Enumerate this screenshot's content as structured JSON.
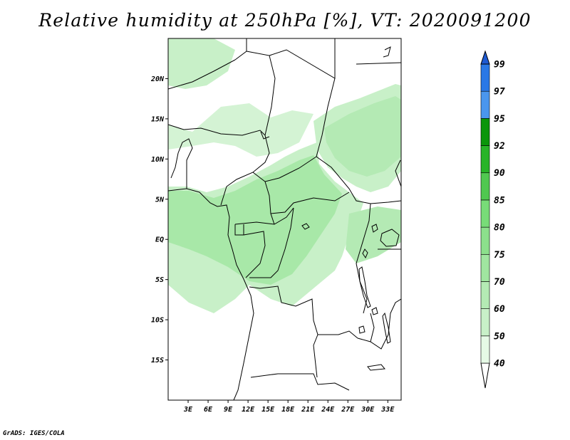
{
  "title": "Relative humidity at 250hPa [%], VT: 2020091200",
  "credit": "GrADS: IGES/COLA",
  "map": {
    "lon_range": [
      0,
      35
    ],
    "lat_range": [
      -20,
      25
    ],
    "lat_ticks": [
      "20N",
      "15N",
      "10N",
      "5N",
      "EQ",
      "5S",
      "10S",
      "15S"
    ],
    "lon_ticks": [
      "3E",
      "6E",
      "9E",
      "12E",
      "15E",
      "18E",
      "21E",
      "24E",
      "27E",
      "30E",
      "33E"
    ]
  },
  "colorbar": {
    "levels": [
      "40",
      "50",
      "60",
      "70",
      "75",
      "80",
      "85",
      "90",
      "92",
      "95",
      "97",
      "99"
    ],
    "colors": [
      "#e6fae6",
      "#c8f0c8",
      "#b4eab4",
      "#a0e6a0",
      "#8ce08c",
      "#78dc78",
      "#50c850",
      "#28b428",
      "#0a960a",
      "#4a96ee",
      "#2a78e6",
      "#1e5ad2"
    ]
  }
}
